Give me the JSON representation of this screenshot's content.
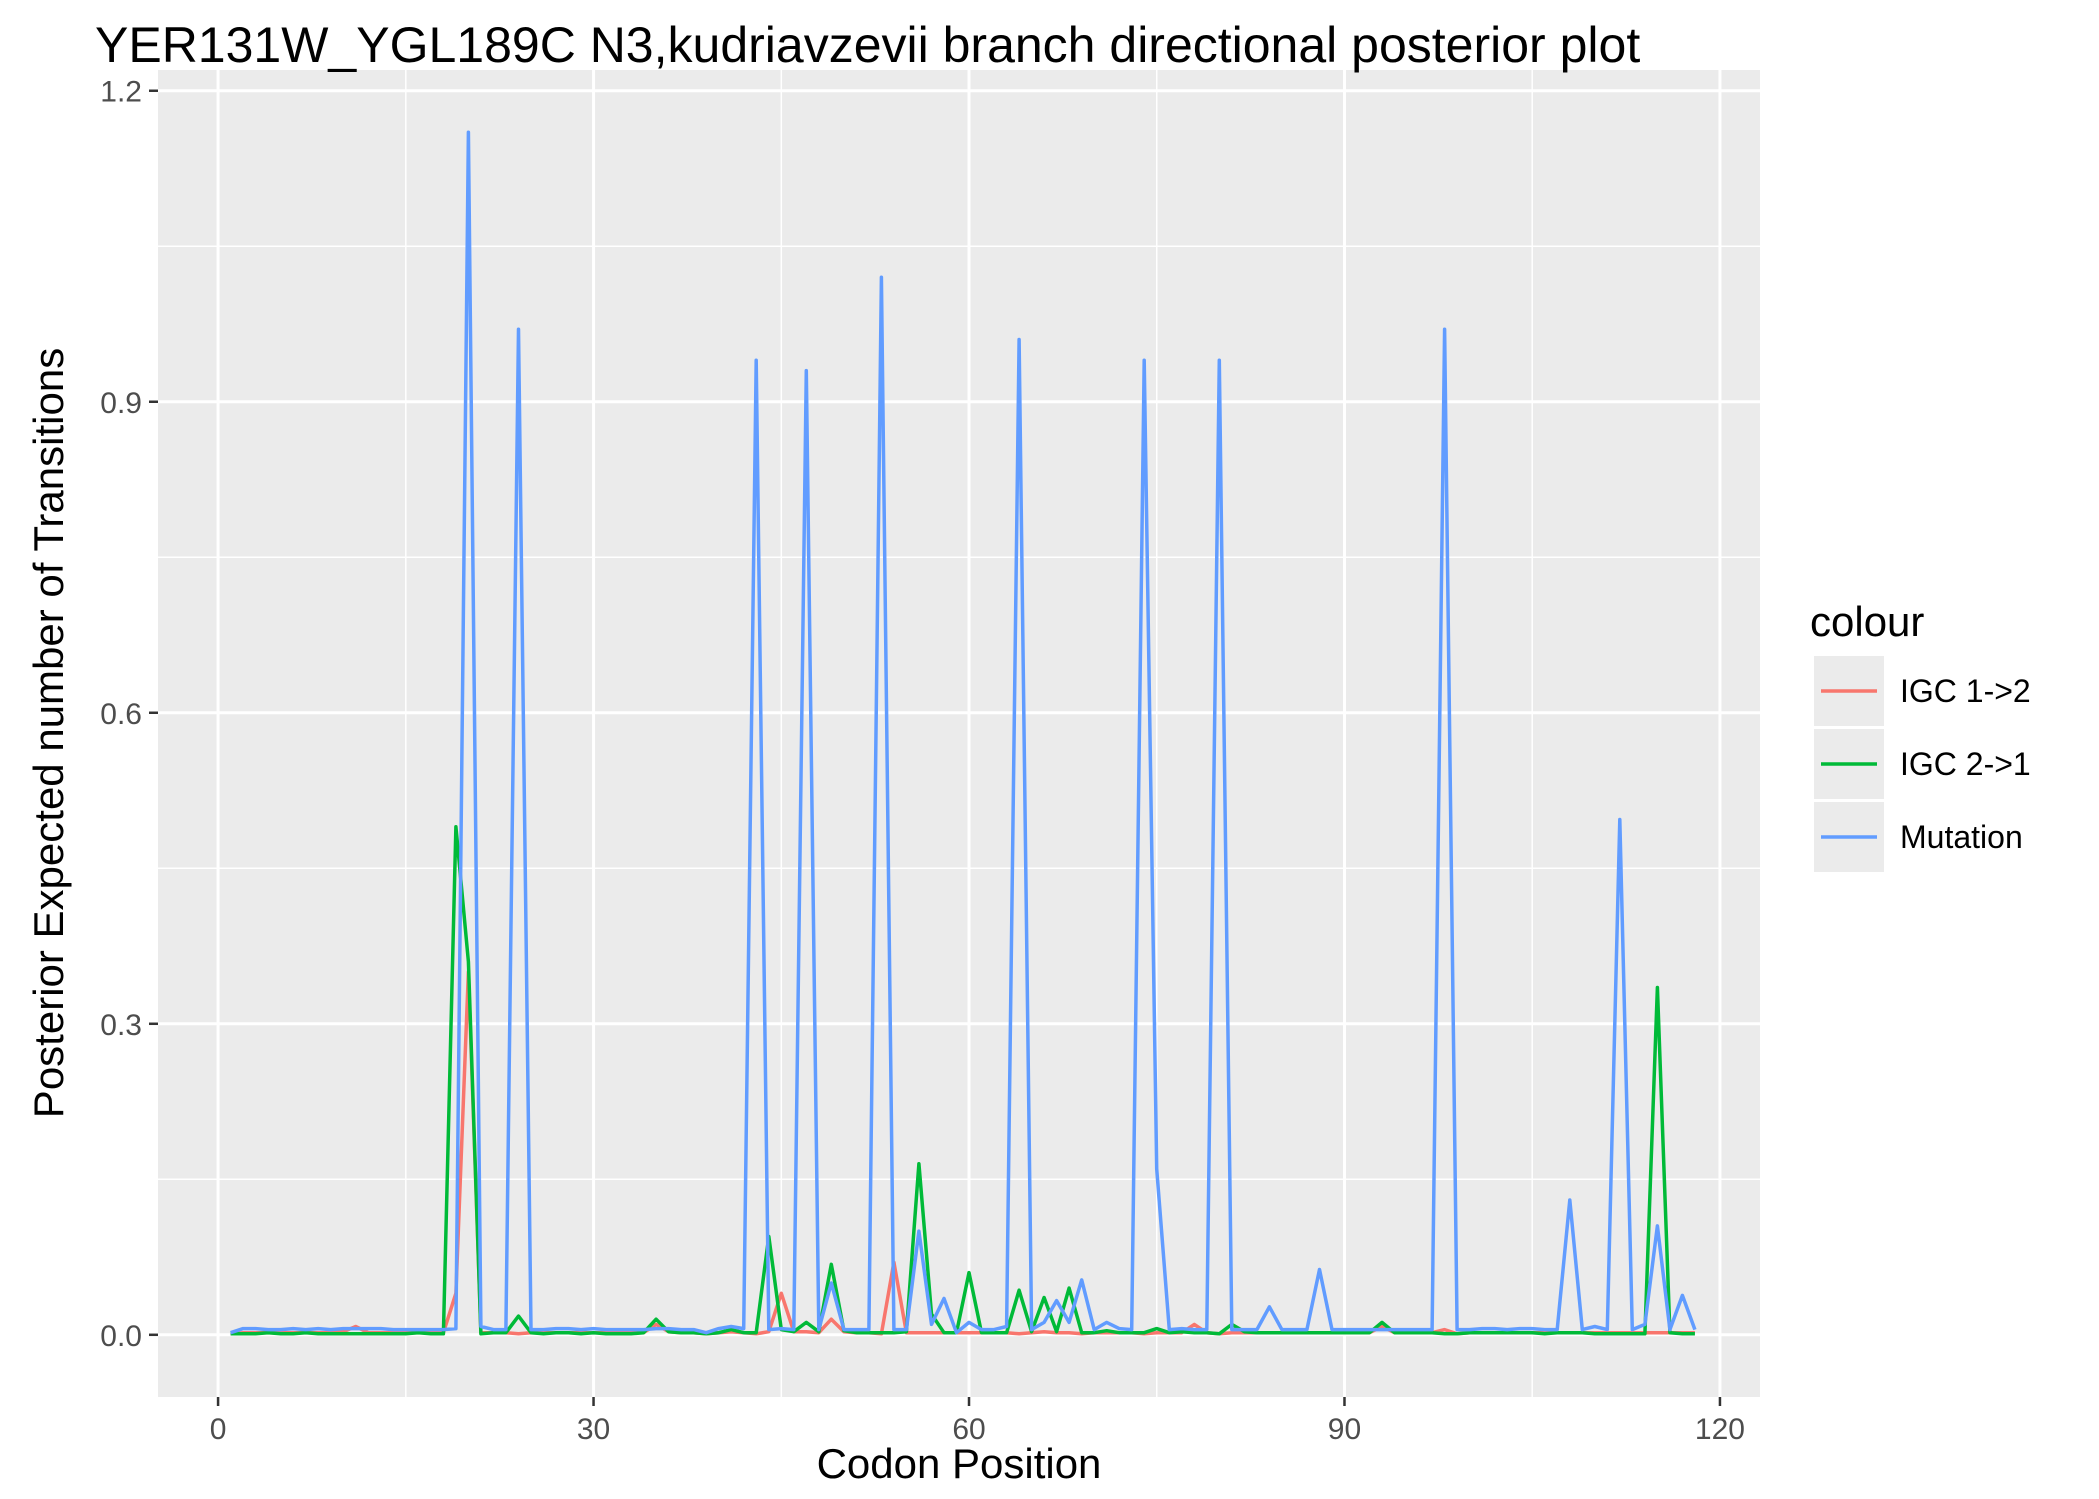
{
  "chart_data": {
    "type": "line",
    "title": "YER131W_YGL189C N3,kudriavzevii branch directional posterior plot",
    "xlabel": "Codon Position",
    "ylabel": "Posterior Expected number of Transitions",
    "xlim": [
      -4.8,
      123.2
    ],
    "ylim": [
      -0.06,
      1.22
    ],
    "xticks": [
      0,
      30,
      60,
      90,
      120
    ],
    "xtick_labels": [
      "0",
      "30",
      "60",
      "90",
      "120"
    ],
    "yticks": [
      0.0,
      0.3,
      0.6,
      0.9,
      1.2
    ],
    "ytick_labels": [
      "0.0",
      "0.3",
      "0.6",
      "0.9",
      "1.2"
    ],
    "grid": true,
    "legend": {
      "title": "colour",
      "position": "right"
    },
    "x": [
      1,
      2,
      3,
      4,
      5,
      6,
      7,
      8,
      9,
      10,
      11,
      12,
      13,
      14,
      15,
      16,
      17,
      18,
      19,
      20,
      21,
      22,
      23,
      24,
      25,
      26,
      27,
      28,
      29,
      30,
      31,
      32,
      33,
      34,
      35,
      36,
      37,
      38,
      39,
      40,
      41,
      42,
      43,
      44,
      45,
      46,
      47,
      48,
      49,
      50,
      51,
      52,
      53,
      54,
      55,
      56,
      57,
      58,
      59,
      60,
      61,
      62,
      63,
      64,
      65,
      66,
      67,
      68,
      69,
      70,
      71,
      72,
      73,
      74,
      75,
      76,
      77,
      78,
      79,
      80,
      81,
      82,
      83,
      84,
      85,
      86,
      87,
      88,
      89,
      90,
      91,
      92,
      93,
      94,
      95,
      96,
      97,
      98,
      99,
      100,
      101,
      102,
      103,
      104,
      105,
      106,
      107,
      108,
      109,
      110,
      111,
      112,
      113,
      114,
      115,
      116,
      117,
      118
    ],
    "series": [
      {
        "name": "IGC 1->2",
        "color": "#F8766D",
        "values": [
          0.001,
          0.002,
          0.002,
          0.002,
          0.002,
          0.002,
          0.002,
          0.002,
          0.002,
          0.003,
          0.008,
          0.002,
          0.002,
          0.002,
          0.002,
          0.002,
          0.002,
          0.002,
          0.04,
          0.35,
          0.002,
          0.002,
          0.002,
          0.001,
          0.002,
          0.002,
          0.002,
          0.002,
          0.002,
          0.002,
          0.002,
          0.002,
          0.002,
          0.002,
          0.01,
          0.003,
          0.002,
          0.002,
          0.001,
          0.002,
          0.003,
          0.002,
          0.001,
          0.003,
          0.04,
          0.003,
          0.003,
          0.002,
          0.015,
          0.003,
          0.002,
          0.002,
          0.001,
          0.07,
          0.002,
          0.002,
          0.002,
          0.002,
          0.002,
          0.002,
          0.002,
          0.002,
          0.002,
          0.001,
          0.002,
          0.003,
          0.002,
          0.002,
          0.001,
          0.002,
          0.002,
          0.002,
          0.002,
          0.001,
          0.002,
          0.002,
          0.002,
          0.01,
          0.002,
          0.001,
          0.002,
          0.002,
          0.002,
          0.002,
          0.002,
          0.002,
          0.002,
          0.002,
          0.002,
          0.002,
          0.002,
          0.002,
          0.008,
          0.002,
          0.002,
          0.002,
          0.002,
          0.005,
          0.001,
          0.002,
          0.002,
          0.002,
          0.002,
          0.002,
          0.002,
          0.002,
          0.002,
          0.002,
          0.002,
          0.002,
          0.002,
          0.002,
          0.002,
          0.002,
          0.002,
          0.002,
          0.002,
          0.002
        ]
      },
      {
        "name": "IGC 2->1",
        "color": "#00BA38",
        "values": [
          0.001,
          0.001,
          0.001,
          0.002,
          0.001,
          0.001,
          0.002,
          0.001,
          0.001,
          0.001,
          0.001,
          0.001,
          0.001,
          0.001,
          0.001,
          0.002,
          0.001,
          0.001,
          0.49,
          0.36,
          0.001,
          0.002,
          0.002,
          0.018,
          0.002,
          0.001,
          0.002,
          0.002,
          0.001,
          0.002,
          0.001,
          0.001,
          0.001,
          0.002,
          0.015,
          0.003,
          0.002,
          0.002,
          0.001,
          0.002,
          0.005,
          0.002,
          0.002,
          0.095,
          0.005,
          0.003,
          0.012,
          0.003,
          0.068,
          0.004,
          0.002,
          0.002,
          0.002,
          0.002,
          0.003,
          0.165,
          0.02,
          0.002,
          0.002,
          0.06,
          0.002,
          0.002,
          0.002,
          0.043,
          0.003,
          0.036,
          0.003,
          0.045,
          0.002,
          0.002,
          0.004,
          0.002,
          0.002,
          0.002,
          0.006,
          0.002,
          0.003,
          0.002,
          0.002,
          0.001,
          0.01,
          0.003,
          0.002,
          0.002,
          0.002,
          0.002,
          0.002,
          0.002,
          0.002,
          0.002,
          0.002,
          0.002,
          0.012,
          0.002,
          0.002,
          0.002,
          0.002,
          0.001,
          0.001,
          0.002,
          0.002,
          0.002,
          0.002,
          0.002,
          0.002,
          0.001,
          0.002,
          0.002,
          0.002,
          0.001,
          0.001,
          0.001,
          0.001,
          0.001,
          0.335,
          0.002,
          0.001,
          0.001
        ]
      },
      {
        "name": "Mutation",
        "color": "#619CFF",
        "values": [
          0.002,
          0.006,
          0.006,
          0.005,
          0.005,
          0.006,
          0.005,
          0.006,
          0.005,
          0.006,
          0.006,
          0.006,
          0.006,
          0.005,
          0.005,
          0.005,
          0.005,
          0.005,
          0.006,
          1.16,
          0.008,
          0.005,
          0.005,
          0.97,
          0.005,
          0.005,
          0.006,
          0.006,
          0.005,
          0.006,
          0.005,
          0.005,
          0.005,
          0.005,
          0.006,
          0.006,
          0.005,
          0.005,
          0.002,
          0.006,
          0.008,
          0.006,
          0.94,
          0.005,
          0.006,
          0.005,
          0.93,
          0.005,
          0.05,
          0.005,
          0.005,
          0.005,
          1.02,
          0.005,
          0.005,
          0.1,
          0.01,
          0.035,
          0.002,
          0.012,
          0.005,
          0.005,
          0.008,
          0.96,
          0.005,
          0.012,
          0.033,
          0.012,
          0.053,
          0.005,
          0.012,
          0.006,
          0.005,
          0.94,
          0.16,
          0.005,
          0.006,
          0.005,
          0.005,
          0.94,
          0.005,
          0.005,
          0.005,
          0.027,
          0.005,
          0.005,
          0.005,
          0.063,
          0.005,
          0.005,
          0.005,
          0.005,
          0.005,
          0.005,
          0.005,
          0.005,
          0.005,
          0.97,
          0.005,
          0.005,
          0.006,
          0.006,
          0.005,
          0.006,
          0.006,
          0.005,
          0.005,
          0.13,
          0.005,
          0.008,
          0.005,
          0.497,
          0.005,
          0.01,
          0.105,
          0.005,
          0.038,
          0.005
        ]
      }
    ]
  }
}
